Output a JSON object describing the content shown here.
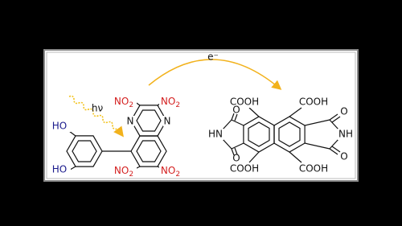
{
  "electron_label": "e⁻",
  "light_label": "hν",
  "donor": {
    "hydroxyls": [
      "HO",
      "HO"
    ],
    "nitro_groups": [
      {
        "text": "NO",
        "sub": "2"
      },
      {
        "text": "NO",
        "sub": "2"
      },
      {
        "text": "NO",
        "sub": "2"
      },
      {
        "text": "NO",
        "sub": "2"
      }
    ],
    "ring_nitrogens": [
      "N",
      "N"
    ]
  },
  "acceptor": {
    "carboxyls": [
      "COOH",
      "COOH",
      "COOH",
      "COOH"
    ],
    "carbonyl_oxygens": [
      "O",
      "O",
      "O",
      "O"
    ],
    "imides": [
      "HN",
      "NH"
    ]
  }
}
